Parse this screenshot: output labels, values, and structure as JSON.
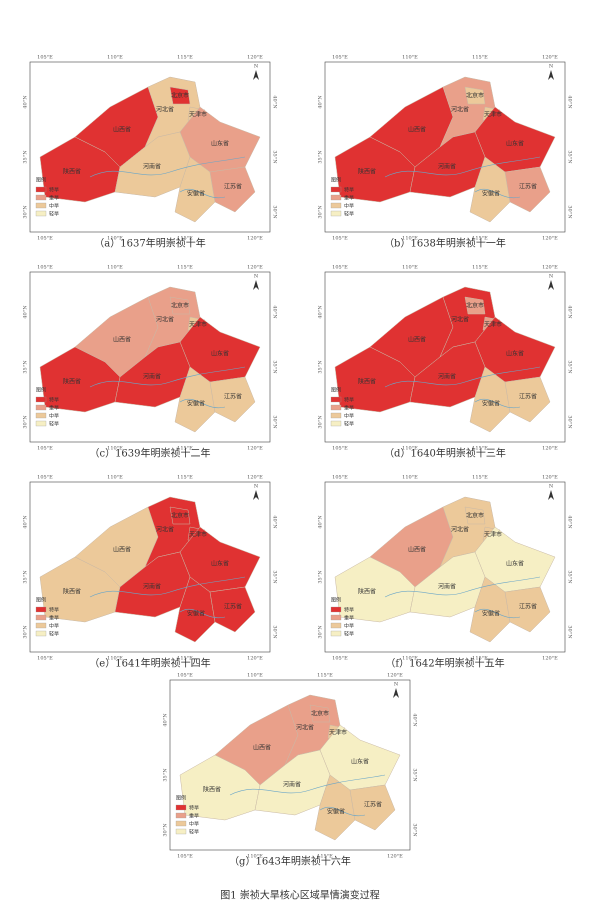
{
  "figure": {
    "caption": "图1 崇祯大旱核心区域旱情演变过程",
    "north": "N",
    "legend": {
      "title": "图例",
      "levels": [
        {
          "label": "特旱",
          "color": "#e03232"
        },
        {
          "label": "重旱",
          "color": "#e9a08a"
        },
        {
          "label": "中旱",
          "color": "#ecc99a"
        },
        {
          "label": "轻旱",
          "color": "#f6efc4"
        }
      ]
    },
    "lon_labels": [
      "105°E",
      "110°E",
      "115°E",
      "120°E"
    ],
    "lat_labels": [
      "40°N",
      "35°N",
      "30°N"
    ],
    "regions": [
      "山西省",
      "陕西省",
      "河北省",
      "北京市",
      "天津市",
      "山东省",
      "河南省",
      "安徽省",
      "江苏省"
    ],
    "panels": [
      {
        "caption": "（a）1637年明崇祯十年",
        "levels": [
          0,
          0,
          2,
          0,
          2,
          1,
          2,
          2,
          1
        ]
      },
      {
        "caption": "（b）1638年明崇祯十一年",
        "levels": [
          0,
          0,
          1,
          2,
          2,
          0,
          0,
          2,
          1
        ]
      },
      {
        "caption": "（c）1639年明崇祯十二年",
        "levels": [
          1,
          0,
          1,
          1,
          2,
          0,
          0,
          2,
          2
        ]
      },
      {
        "caption": "（d）1640年明崇祯十三年",
        "levels": [
          0,
          0,
          0,
          1,
          1,
          0,
          0,
          2,
          2
        ]
      },
      {
        "caption": "（e）1641年明崇祯十四年",
        "levels": [
          2,
          2,
          0,
          0,
          0,
          0,
          0,
          0,
          0
        ]
      },
      {
        "caption": "（f）1642年明崇祯十五年",
        "levels": [
          1,
          3,
          2,
          2,
          2,
          3,
          3,
          2,
          2
        ]
      },
      {
        "caption": "（g）1643年明崇祯十六年",
        "levels": [
          1,
          3,
          1,
          1,
          2,
          3,
          3,
          2,
          2
        ]
      }
    ]
  }
}
